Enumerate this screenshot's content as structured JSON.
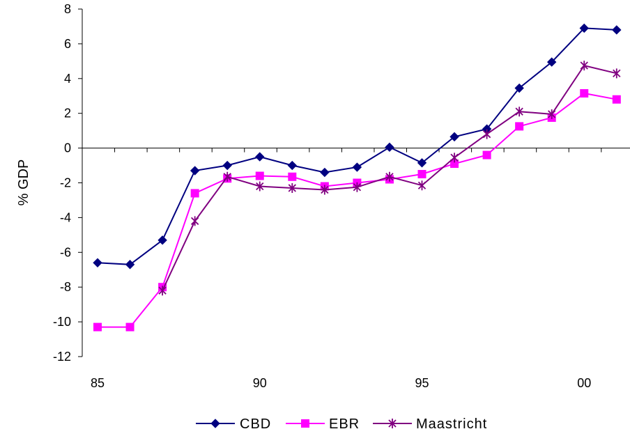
{
  "chart_data": {
    "type": "line",
    "ylabel": "% GDP",
    "xlabel": "",
    "ylim": [
      -12,
      8
    ],
    "yticks": [
      "8",
      "6",
      "4",
      "2",
      "0",
      "-2",
      "-4",
      "-6",
      "-8",
      "-10",
      "-12"
    ],
    "x": [
      "85",
      "86",
      "87",
      "88",
      "89",
      "90",
      "91",
      "92",
      "93",
      "94",
      "95",
      "96",
      "97",
      "98",
      "99",
      "00",
      "01"
    ],
    "xtick_labels": [
      "85",
      "90",
      "95",
      "00"
    ],
    "series": [
      {
        "name": "CBD",
        "color": "#000080",
        "marker": "diamond",
        "values": [
          -6.6,
          -6.7,
          -5.3,
          -1.3,
          -1.0,
          -0.5,
          -1.0,
          -1.4,
          -1.1,
          0.05,
          -0.85,
          0.65,
          1.1,
          3.45,
          4.95,
          6.9,
          6.8
        ]
      },
      {
        "name": "EBR",
        "color": "#ff00ff",
        "marker": "square",
        "values": [
          -10.3,
          -10.3,
          -8.0,
          -2.6,
          -1.75,
          -1.6,
          -1.65,
          -2.2,
          -2.0,
          -1.8,
          -1.5,
          -0.9,
          -0.4,
          1.25,
          1.75,
          3.15,
          2.8
        ]
      },
      {
        "name": "Maastricht",
        "color": "#800080",
        "marker": "star",
        "values": [
          null,
          null,
          -8.2,
          -4.2,
          -1.65,
          -2.2,
          -2.3,
          -2.4,
          -2.25,
          -1.65,
          -2.15,
          -0.55,
          0.8,
          2.1,
          1.95,
          4.75,
          4.3
        ]
      }
    ],
    "grid": false,
    "legend_position": "bottom"
  }
}
